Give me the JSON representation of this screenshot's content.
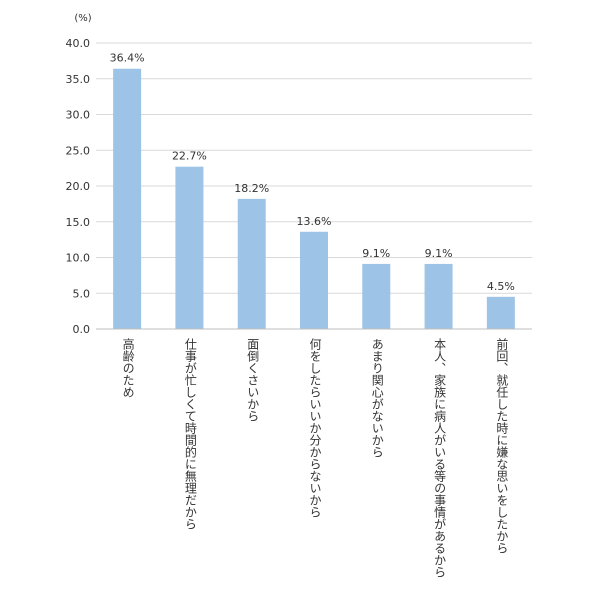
{
  "chart_data": {
    "type": "bar",
    "unit_label": "(%)",
    "ylim": [
      0,
      40
    ],
    "ytick_labels": [
      "0.0",
      "5.0",
      "10.0",
      "15.0",
      "20.0",
      "25.0",
      "30.0",
      "35.0",
      "40.0"
    ],
    "grid": true,
    "categories": [
      "高齢のため",
      "仕事が忙しくて時間的に無理だから",
      "面倒くさいから",
      "何をしたらいいか分からないから",
      "あまり関心がないから",
      "本人、家族に病人がいる等の事情があるから",
      "前回、就任した時に嫌な思いをしたから"
    ],
    "values": [
      36.4,
      22.7,
      18.2,
      13.6,
      9.1,
      9.1,
      4.5
    ],
    "data_labels": [
      "36.4%",
      "22.7%",
      "18.2%",
      "13.6%",
      "9.1%",
      "9.1%",
      "4.5%"
    ],
    "colors": {
      "bar": "#9dc3e6",
      "grid": "#d9d9d9",
      "axis": "#bfbfbf",
      "text": "#333333"
    }
  }
}
